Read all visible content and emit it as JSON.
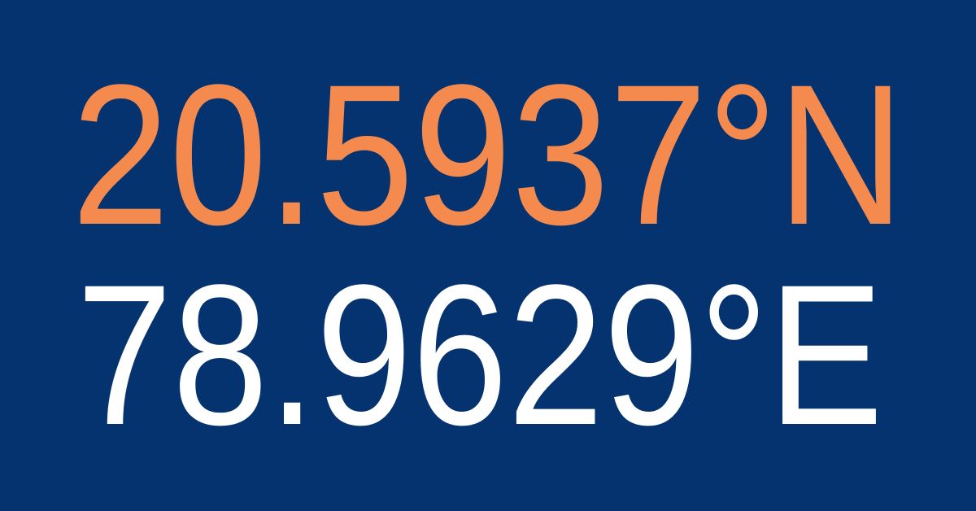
{
  "coordinates": {
    "latitude": "20.5937°N",
    "longitude": "78.9629°E"
  }
}
